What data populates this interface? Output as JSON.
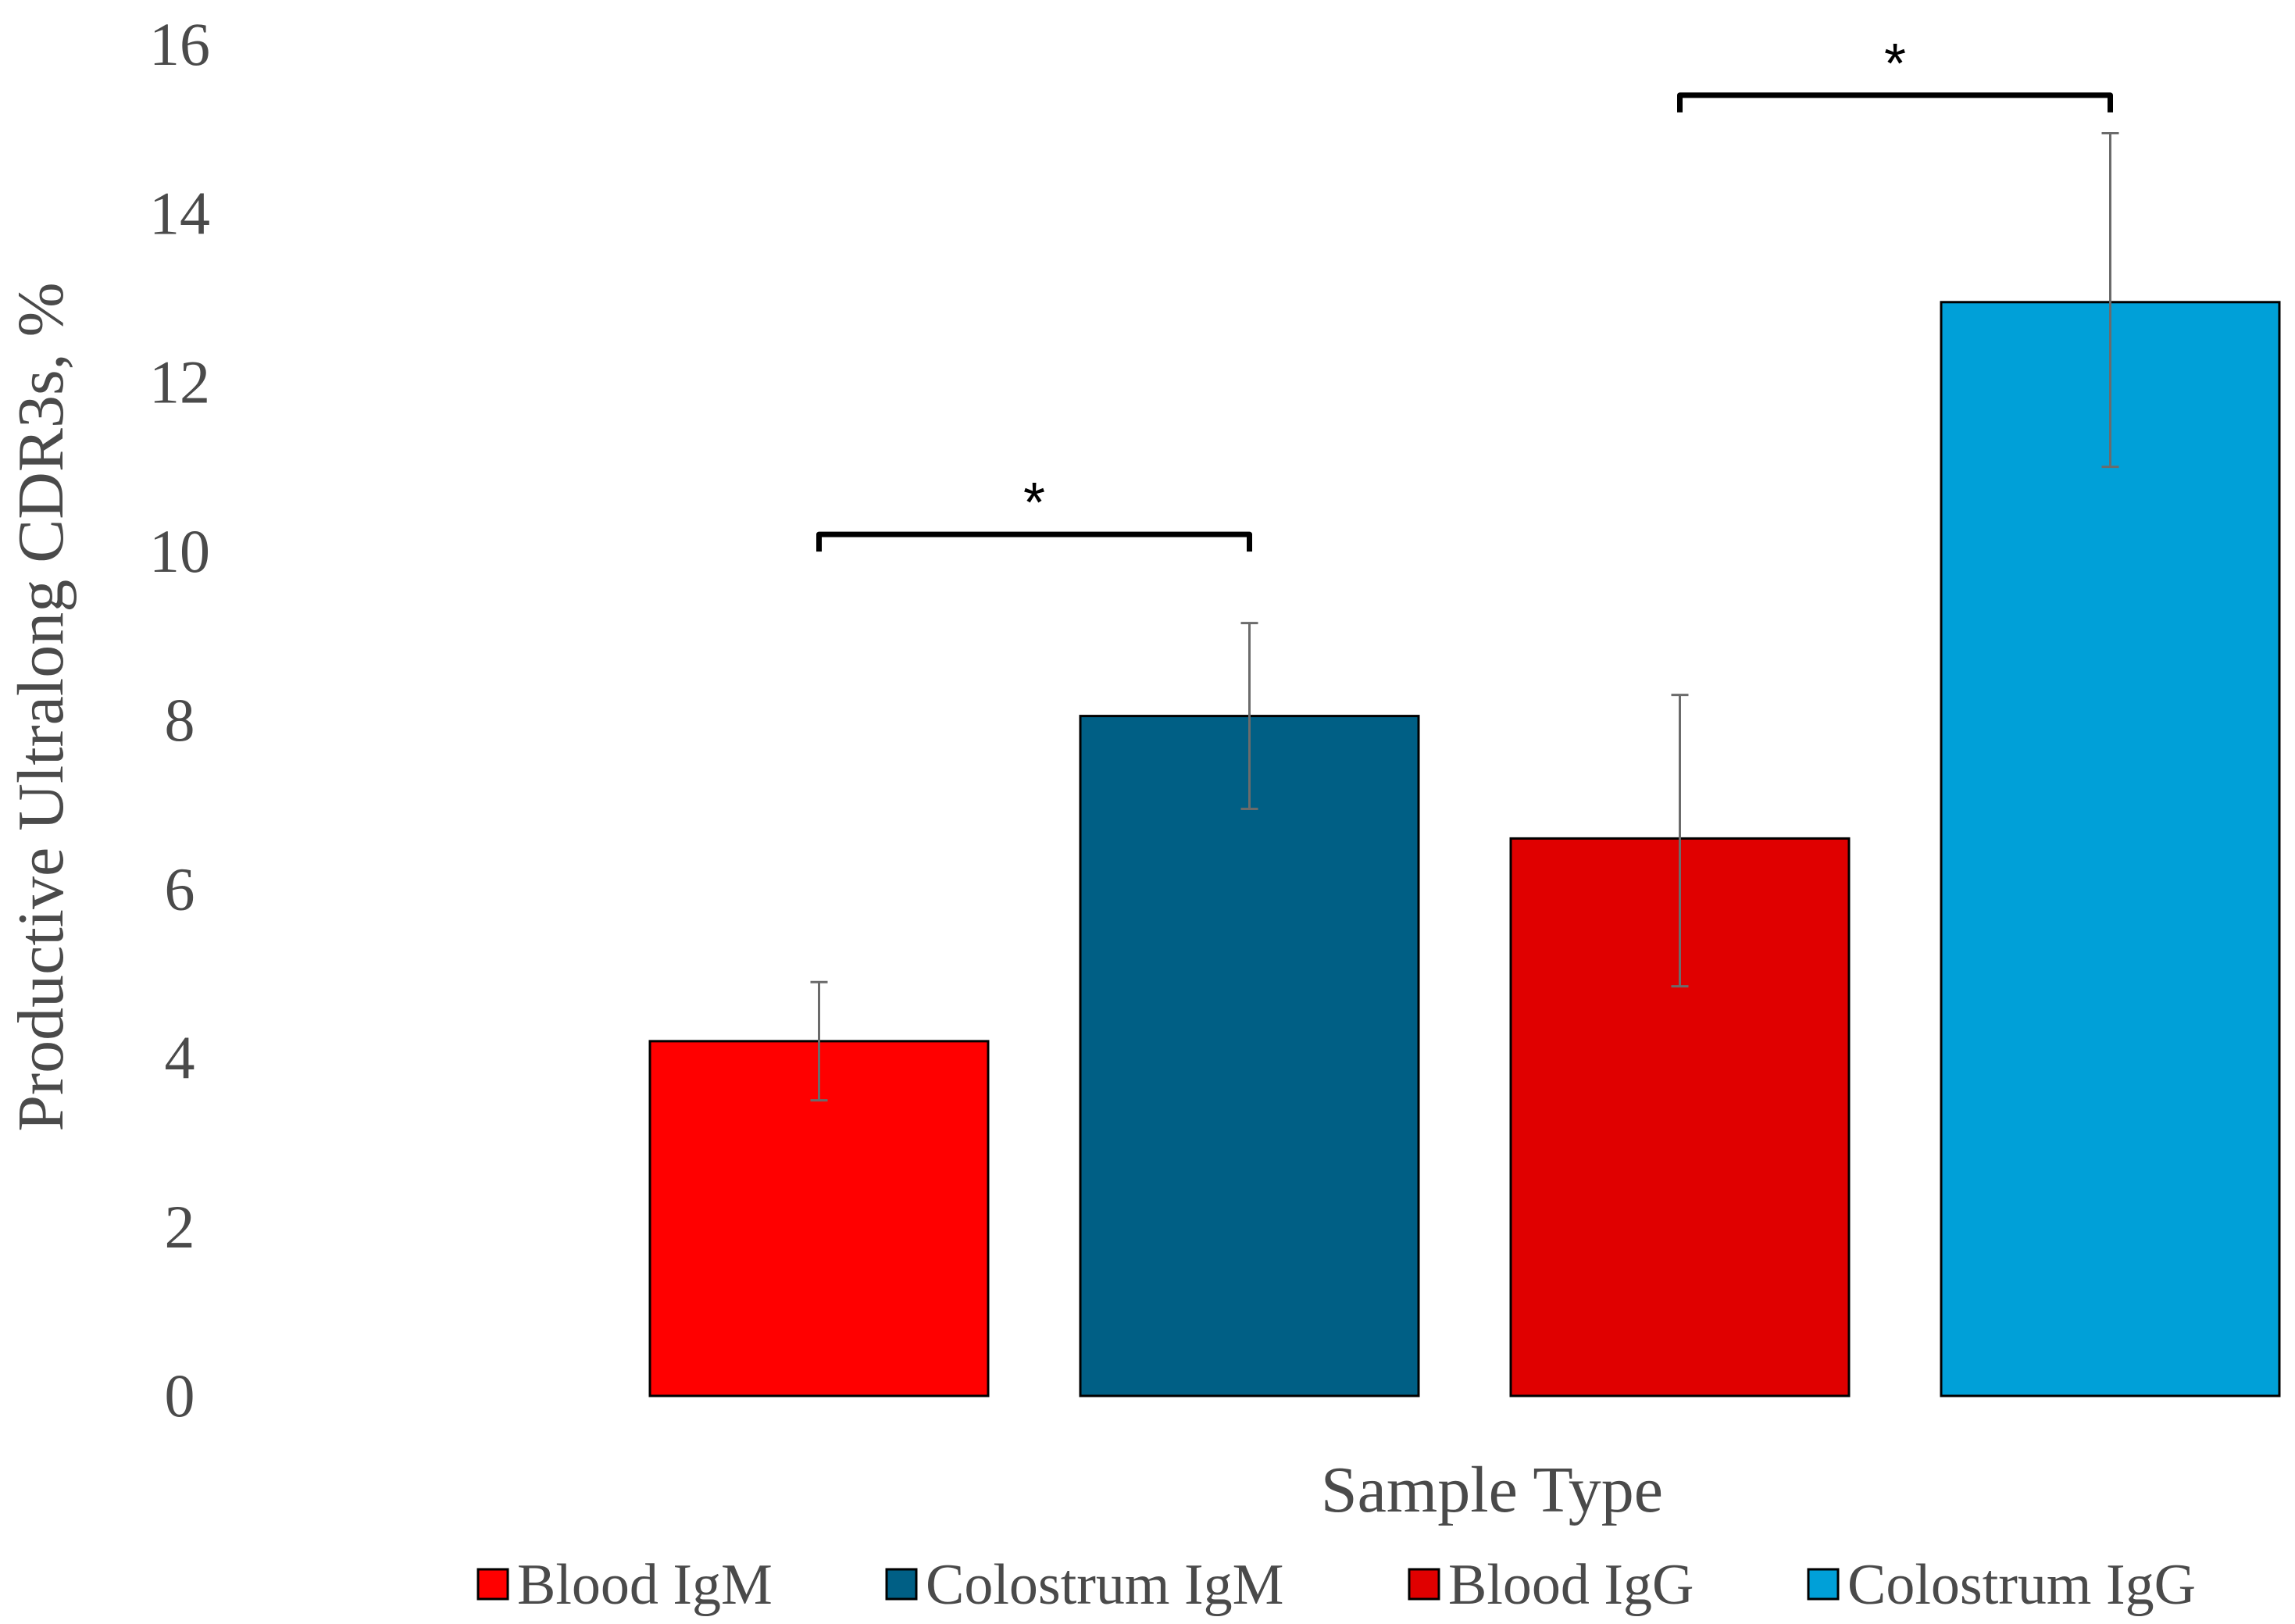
{
  "chart_data": {
    "type": "bar",
    "title": "",
    "xlabel": "Sample Type",
    "ylabel": "Productive Ultralong CDR3s, %",
    "ylim": [
      0,
      16
    ],
    "yticks": [
      0,
      2,
      4,
      6,
      8,
      10,
      12,
      14,
      16
    ],
    "grid": false,
    "legend_position": "bottom",
    "series": [
      {
        "name": "Blood IgM",
        "value": 4.2,
        "error_low": 3.5,
        "error_high": 4.9,
        "color": "#ff0000"
      },
      {
        "name": "Colostrum IgM",
        "value": 8.05,
        "error_low": 6.95,
        "error_high": 9.15,
        "color": "#005f85"
      },
      {
        "name": "Blood IgG",
        "value": 6.6,
        "error_low": 4.85,
        "error_high": 8.3,
        "color": "#e00000"
      },
      {
        "name": "Colostrum IgG",
        "value": 12.95,
        "error_low": 11.0,
        "error_high": 14.95,
        "color": "#00a0d8"
      }
    ],
    "significance": [
      {
        "from": 0,
        "to": 1,
        "label": "*",
        "y": 10.2
      },
      {
        "from": 2,
        "to": 3,
        "label": "*",
        "y": 15.4
      }
    ]
  }
}
